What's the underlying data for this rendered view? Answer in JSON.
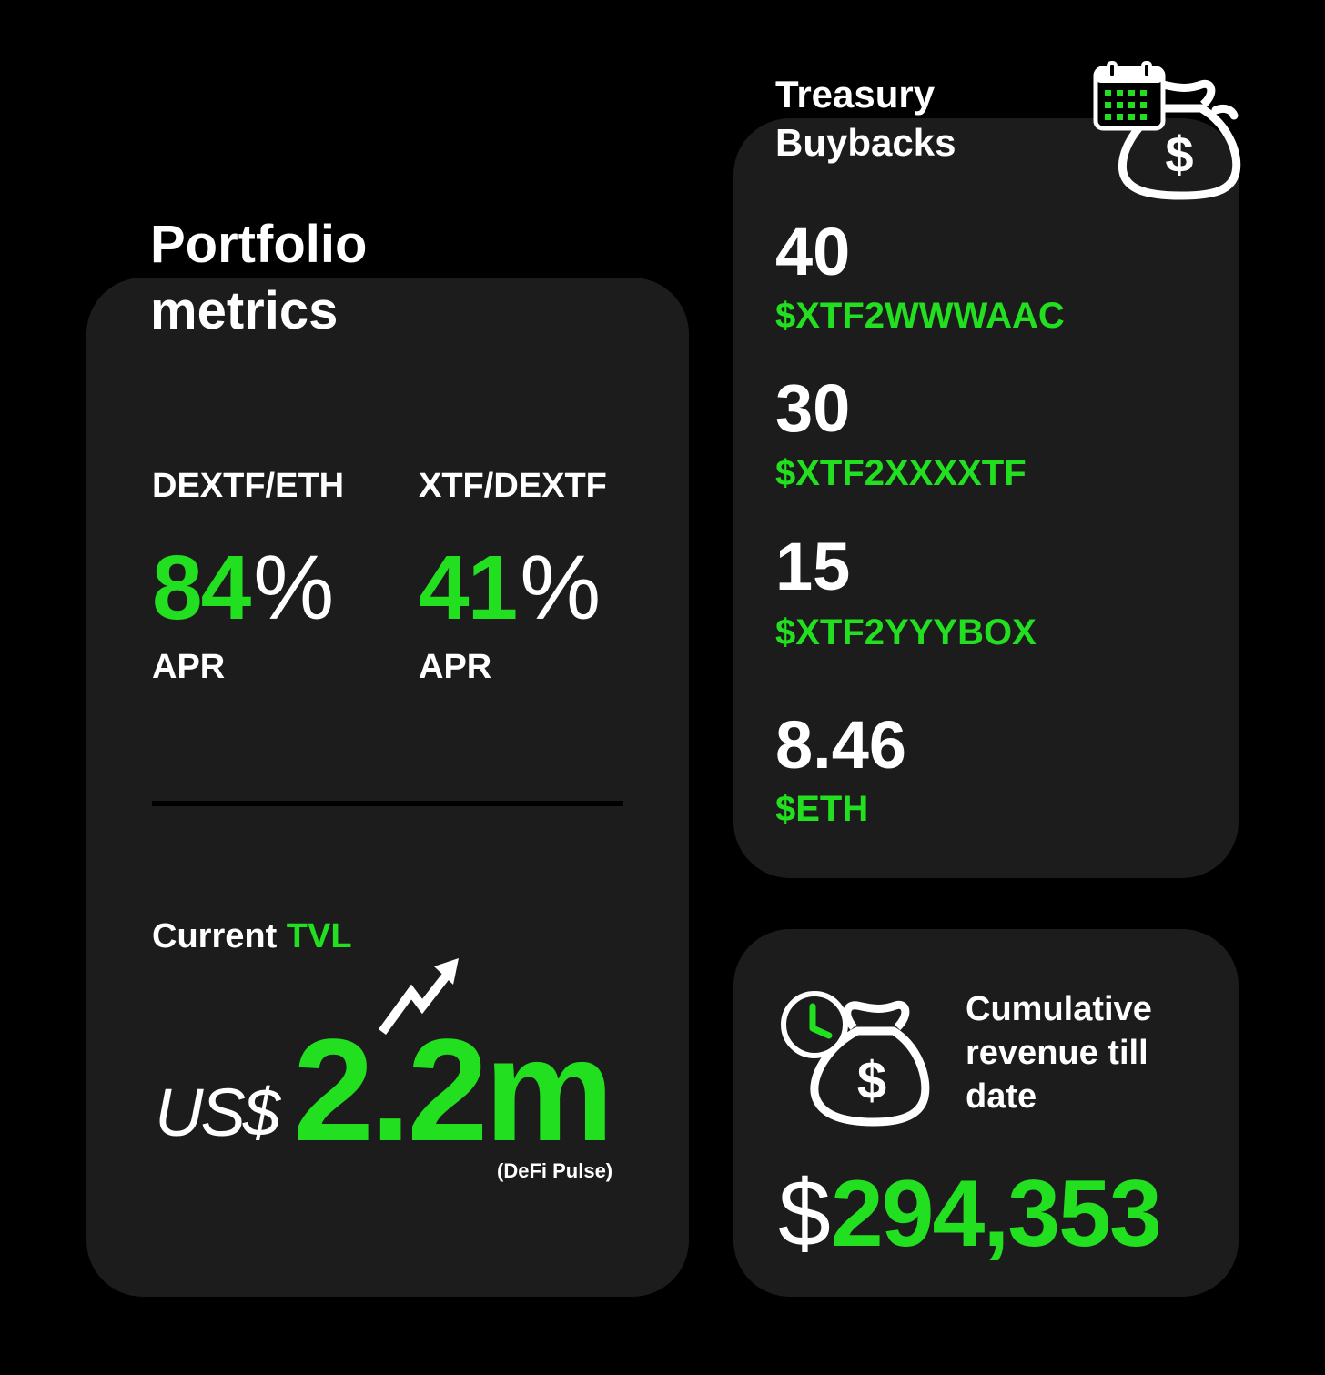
{
  "portfolio": {
    "title": "Portfolio metrics",
    "pairs": [
      {
        "label": "DEXTF/ETH",
        "value": "84",
        "unit": "%",
        "metric": "APR"
      },
      {
        "label": "XTF/DEXTF",
        "value": "41",
        "unit": "%",
        "metric": "APR"
      }
    ],
    "tvl": {
      "label_prefix": "Current",
      "label_highlight": "TVL",
      "currency": "US$",
      "value": "2.2m",
      "source": "(DeFi Pulse)"
    }
  },
  "treasury": {
    "title": "Treasury Buybacks",
    "items": [
      {
        "amount": "40",
        "token": "$XTF2WWWAAC"
      },
      {
        "amount": "30",
        "token": "$XTF2XXXXTF"
      },
      {
        "amount": "15",
        "token": "$XTF2YYYBOX"
      },
      {
        "amount": "8.46",
        "token": "$ETH"
      }
    ]
  },
  "revenue": {
    "label": "Cumulative revenue till date",
    "currency_symbol": "$",
    "value": "294,353"
  },
  "colors": {
    "background": "#000000",
    "card": "#1c1c1c",
    "accent": "#22e01f",
    "text": "#ffffff"
  },
  "icons": [
    "trend-up-arrow-icon",
    "calendar-icon",
    "money-bag-icon",
    "clock-icon"
  ]
}
